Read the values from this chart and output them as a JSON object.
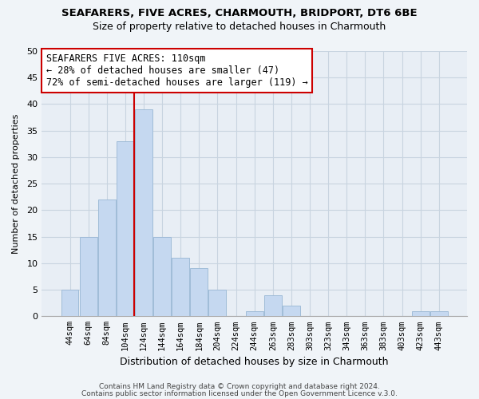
{
  "title1": "SEAFARERS, FIVE ACRES, CHARMOUTH, BRIDPORT, DT6 6BE",
  "title2": "Size of property relative to detached houses in Charmouth",
  "xlabel": "Distribution of detached houses by size in Charmouth",
  "ylabel": "Number of detached properties",
  "bar_labels": [
    "44sqm",
    "64sqm",
    "84sqm",
    "104sqm",
    "124sqm",
    "144sqm",
    "164sqm",
    "184sqm",
    "204sqm",
    "224sqm",
    "244sqm",
    "263sqm",
    "283sqm",
    "303sqm",
    "323sqm",
    "343sqm",
    "363sqm",
    "383sqm",
    "403sqm",
    "423sqm",
    "443sqm"
  ],
  "bar_values": [
    5,
    15,
    22,
    33,
    39,
    15,
    11,
    9,
    5,
    0,
    1,
    4,
    2,
    0,
    0,
    0,
    0,
    0,
    0,
    1,
    1
  ],
  "bar_color": "#c5d8f0",
  "bar_edgecolor": "#a0bcd8",
  "ylim": [
    0,
    50
  ],
  "yticks": [
    0,
    5,
    10,
    15,
    20,
    25,
    30,
    35,
    40,
    45,
    50
  ],
  "annotation_title": "SEAFARERS FIVE ACRES: 110sqm",
  "annotation_line1": "← 28% of detached houses are smaller (47)",
  "annotation_line2": "72% of semi-detached houses are larger (119) →",
  "annotation_box_color": "#ffffff",
  "annotation_box_edgecolor": "#cc0000",
  "footer1": "Contains HM Land Registry data © Crown copyright and database right 2024.",
  "footer2": "Contains public sector information licensed under the Open Government Licence v.3.0.",
  "background_color": "#f0f4f8",
  "plot_bg_color": "#e8eef5",
  "grid_color": "#c8d4e0"
}
